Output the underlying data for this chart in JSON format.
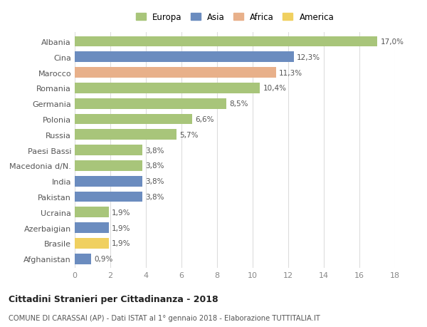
{
  "countries": [
    "Albania",
    "Cina",
    "Marocco",
    "Romania",
    "Germania",
    "Polonia",
    "Russia",
    "Paesi Bassi",
    "Macedonia d/N.",
    "India",
    "Pakistan",
    "Ucraina",
    "Azerbaigian",
    "Brasile",
    "Afghanistan"
  ],
  "values": [
    17.0,
    12.3,
    11.3,
    10.4,
    8.5,
    6.6,
    5.7,
    3.8,
    3.8,
    3.8,
    3.8,
    1.9,
    1.9,
    1.9,
    0.9
  ],
  "labels": [
    "17,0%",
    "12,3%",
    "11,3%",
    "10,4%",
    "8,5%",
    "6,6%",
    "5,7%",
    "3,8%",
    "3,8%",
    "3,8%",
    "3,8%",
    "1,9%",
    "1,9%",
    "1,9%",
    "0,9%"
  ],
  "continents": [
    "Europa",
    "Asia",
    "Africa",
    "Europa",
    "Europa",
    "Europa",
    "Europa",
    "Europa",
    "Europa",
    "Asia",
    "Asia",
    "Europa",
    "Asia",
    "America",
    "Asia"
  ],
  "colors": {
    "Europa": "#a8c57a",
    "Asia": "#6b8cbf",
    "Africa": "#e8b08a",
    "America": "#f0d060"
  },
  "legend_order": [
    "Europa",
    "Asia",
    "Africa",
    "America"
  ],
  "title": "Cittadini Stranieri per Cittadinanza - 2018",
  "subtitle": "COMUNE DI CARASSAI (AP) - Dati ISTAT al 1° gennaio 2018 - Elaborazione TUTTITALIA.IT",
  "xlim": [
    0,
    18
  ],
  "xticks": [
    0,
    2,
    4,
    6,
    8,
    10,
    12,
    14,
    16,
    18
  ],
  "background_color": "#ffffff",
  "grid_color": "#dddddd"
}
